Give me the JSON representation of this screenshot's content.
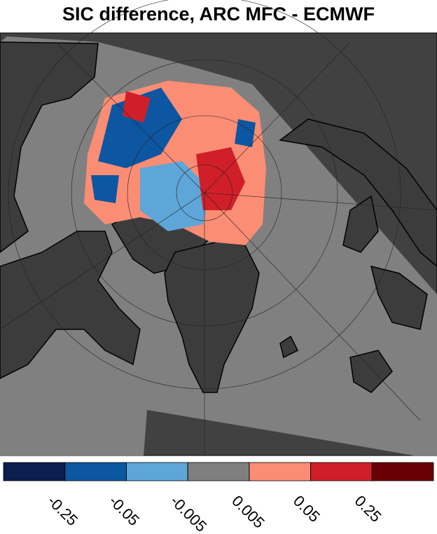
{
  "title": "SIC difference, ARC MFC - ECMWF",
  "colorbar": {
    "colors": [
      "#0b1e4e",
      "#0d56a1",
      "#5ea6d8",
      "#7f7f7f",
      "#fb8d74",
      "#d11f29",
      "#690006"
    ],
    "ticks": [
      -0.25,
      -0.05,
      -0.005,
      0.005,
      0.05,
      0.25
    ]
  }
}
